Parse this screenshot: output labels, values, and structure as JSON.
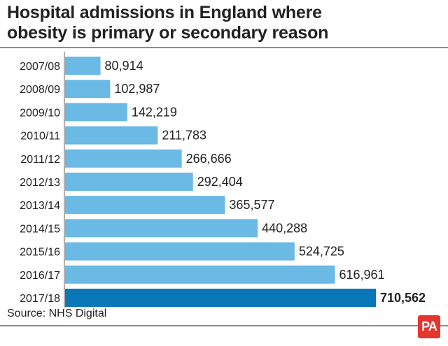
{
  "header": {
    "title_line1": "Hospital admissions in England where",
    "title_line2": "obesity is primary or secondary reason"
  },
  "chart_data": {
    "type": "bar",
    "orientation": "horizontal",
    "title": "Hospital admissions in England where obesity is primary or secondary reason",
    "categories": [
      "2007/08",
      "2008/09",
      "2009/10",
      "2010/11",
      "2011/12",
      "2012/13",
      "2013/14",
      "2014/15",
      "2015/16",
      "2016/17",
      "2017/18"
    ],
    "values": [
      80914,
      102987,
      142219,
      211783,
      266666,
      292404,
      365577,
      440288,
      524725,
      616961,
      710562
    ],
    "value_labels": [
      "80,914",
      "102,987",
      "142,219",
      "211,783",
      "266,666",
      "292,404",
      "365,577",
      "440,288",
      "524,725",
      "616,961",
      "710,562"
    ],
    "highlight_index": 10,
    "colors": {
      "bar": "#6bb9e5",
      "highlight": "#0a77b8"
    },
    "grid": false,
    "legend": "none"
  },
  "footer": {
    "source": "Source: NHS Digital",
    "logo_text": "PA"
  }
}
